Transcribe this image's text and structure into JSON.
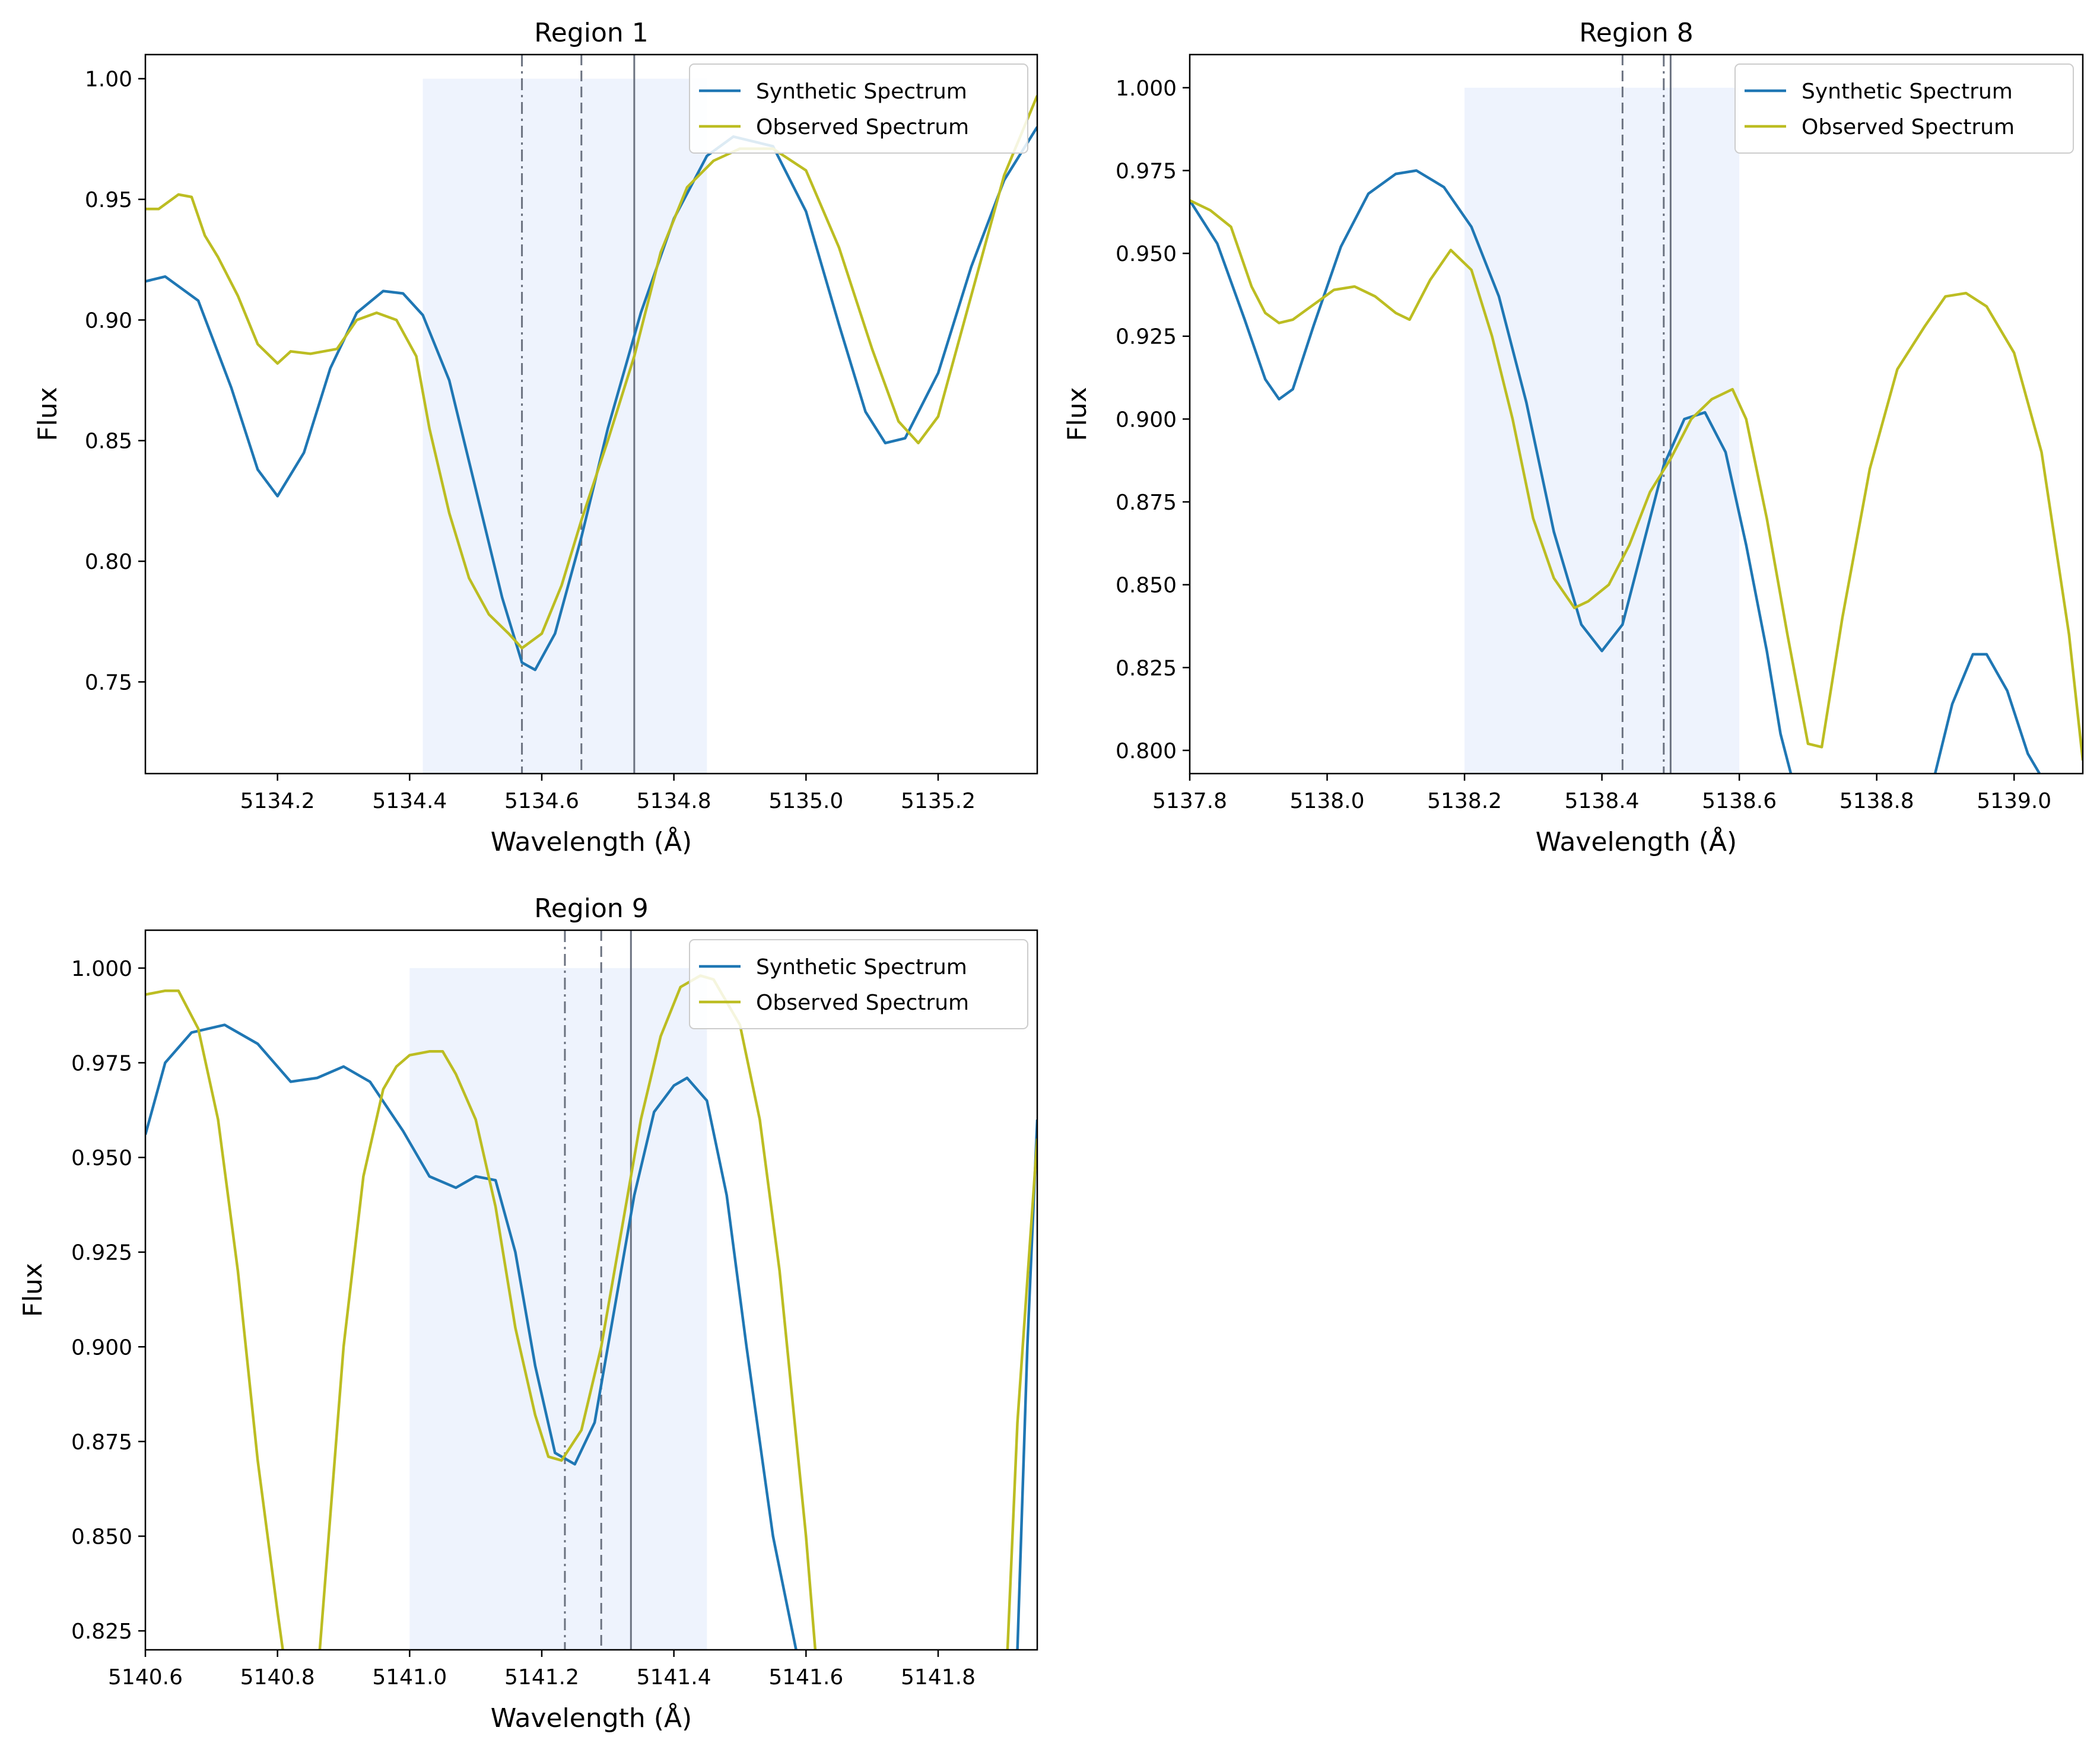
{
  "chart_data": [
    {
      "type": "line",
      "title": "Region 1",
      "xlabel": "Wavelength (Å)",
      "ylabel": "Flux",
      "xlim": [
        5134.0,
        5135.35
      ],
      "ylim": [
        0.712,
        1.01
      ],
      "xticks": [
        "5134.2",
        "5134.4",
        "5134.6",
        "5134.8",
        "5135.0",
        "5135.2"
      ],
      "yticks": [
        "0.75",
        "0.80",
        "0.85",
        "0.90",
        "0.95",
        "1.00"
      ],
      "xtick_values": [
        5134.2,
        5134.4,
        5134.6,
        5134.8,
        5135.0,
        5135.2
      ],
      "ytick_values": [
        0.75,
        0.8,
        0.85,
        0.9,
        0.95,
        1.0
      ],
      "shaded_region": {
        "x": [
          5134.42,
          5134.85
        ],
        "y": [
          0.712,
          1.0
        ]
      },
      "vlines": [
        {
          "x": 5134.57,
          "style": "dashdot"
        },
        {
          "x": 5134.66,
          "style": "dashed"
        },
        {
          "x": 5134.74,
          "style": "solid"
        }
      ],
      "legend": {
        "position": "upper right"
      },
      "series": [
        {
          "name": "Synthetic Spectrum",
          "color": "#1f77b4",
          "x": [
            5134.0,
            5134.03,
            5134.08,
            5134.13,
            5134.17,
            5134.2,
            5134.24,
            5134.28,
            5134.32,
            5134.36,
            5134.39,
            5134.42,
            5134.46,
            5134.5,
            5134.54,
            5134.57,
            5134.59,
            5134.62,
            5134.66,
            5134.7,
            5134.75,
            5134.8,
            5134.85,
            5134.89,
            5134.95,
            5135.0,
            5135.05,
            5135.09,
            5135.12,
            5135.15,
            5135.2,
            5135.25,
            5135.3,
            5135.35
          ],
          "y": [
            0.916,
            0.918,
            0.908,
            0.872,
            0.838,
            0.827,
            0.845,
            0.88,
            0.903,
            0.912,
            0.911,
            0.902,
            0.875,
            0.83,
            0.785,
            0.758,
            0.755,
            0.77,
            0.81,
            0.855,
            0.903,
            0.942,
            0.968,
            0.976,
            0.972,
            0.945,
            0.898,
            0.862,
            0.849,
            0.851,
            0.878,
            0.922,
            0.958,
            0.98
          ]
        },
        {
          "name": "Observed Spectrum",
          "color": "#bcbd22",
          "x": [
            5134.0,
            5134.02,
            5134.05,
            5134.07,
            5134.09,
            5134.11,
            5134.14,
            5134.17,
            5134.2,
            5134.22,
            5134.25,
            5134.29,
            5134.32,
            5134.35,
            5134.38,
            5134.41,
            5134.43,
            5134.46,
            5134.49,
            5134.52,
            5134.55,
            5134.57,
            5134.6,
            5134.63,
            5134.66,
            5134.7,
            5134.74,
            5134.78,
            5134.82,
            5134.86,
            5134.9,
            5134.95,
            5135.0,
            5135.05,
            5135.1,
            5135.14,
            5135.17,
            5135.2,
            5135.25,
            5135.3,
            5135.35
          ],
          "y": [
            0.946,
            0.946,
            0.952,
            0.951,
            0.935,
            0.926,
            0.91,
            0.89,
            0.882,
            0.887,
            0.886,
            0.888,
            0.9,
            0.903,
            0.9,
            0.885,
            0.855,
            0.82,
            0.793,
            0.778,
            0.77,
            0.764,
            0.77,
            0.79,
            0.817,
            0.85,
            0.885,
            0.928,
            0.955,
            0.966,
            0.971,
            0.971,
            0.962,
            0.93,
            0.888,
            0.858,
            0.849,
            0.86,
            0.91,
            0.96,
            0.993
          ]
        }
      ]
    },
    {
      "type": "line",
      "title": "Region 8",
      "xlabel": "Wavelength (Å)",
      "ylabel": "Flux",
      "xlim": [
        5137.8,
        5139.1
      ],
      "ylim": [
        0.793,
        1.01
      ],
      "xticks": [
        "5137.8",
        "5138.0",
        "5138.2",
        "5138.4",
        "5138.6",
        "5138.8",
        "5139.0"
      ],
      "yticks": [
        "0.800",
        "0.825",
        "0.850",
        "0.875",
        "0.900",
        "0.925",
        "0.950",
        "0.975",
        "1.000"
      ],
      "xtick_values": [
        5137.8,
        5138.0,
        5138.2,
        5138.4,
        5138.6,
        5138.8,
        5139.0
      ],
      "ytick_values": [
        0.8,
        0.825,
        0.85,
        0.875,
        0.9,
        0.925,
        0.95,
        0.975,
        1.0
      ],
      "shaded_region": {
        "x": [
          5138.2,
          5138.6
        ],
        "y": [
          0.793,
          1.0
        ]
      },
      "vlines": [
        {
          "x": 5138.43,
          "style": "dashed"
        },
        {
          "x": 5138.49,
          "style": "dashdot"
        },
        {
          "x": 5138.5,
          "style": "solid"
        }
      ],
      "legend": {
        "position": "upper right"
      },
      "series": [
        {
          "name": "Synthetic Spectrum",
          "color": "#1f77b4",
          "x": [
            5137.8,
            5137.84,
            5137.88,
            5137.91,
            5137.93,
            5137.95,
            5137.98,
            5138.02,
            5138.06,
            5138.1,
            5138.13,
            5138.17,
            5138.21,
            5138.25,
            5138.29,
            5138.33,
            5138.37,
            5138.4,
            5138.43,
            5138.46,
            5138.49,
            5138.52,
            5138.55,
            5138.58,
            5138.61,
            5138.64,
            5138.66,
            5138.675,
            null,
            5138.885,
            5138.91,
            5138.94,
            5138.96,
            5138.99,
            5139.02,
            5139.037
          ],
          "y": [
            0.966,
            0.953,
            0.93,
            0.912,
            0.906,
            0.909,
            0.928,
            0.952,
            0.968,
            0.974,
            0.975,
            0.97,
            0.958,
            0.937,
            0.905,
            0.866,
            0.838,
            0.83,
            0.838,
            0.862,
            0.886,
            0.9,
            0.902,
            0.89,
            0.862,
            0.83,
            0.805,
            0.793,
            null,
            0.793,
            0.814,
            0.829,
            0.829,
            0.818,
            0.799,
            0.793
          ]
        },
        {
          "name": "Observed Spectrum",
          "color": "#bcbd22",
          "x": [
            5137.8,
            5137.83,
            5137.86,
            5137.89,
            5137.91,
            5137.93,
            5137.95,
            5137.97,
            5137.99,
            5138.01,
            5138.04,
            5138.07,
            5138.1,
            5138.12,
            5138.15,
            5138.18,
            5138.21,
            5138.24,
            5138.27,
            5138.3,
            5138.33,
            5138.36,
            5138.38,
            5138.41,
            5138.44,
            5138.47,
            5138.5,
            5138.53,
            5138.56,
            5138.59,
            5138.61,
            5138.64,
            5138.67,
            5138.7,
            5138.72,
            5138.75,
            5138.79,
            5138.83,
            5138.87,
            5138.9,
            5138.93,
            5138.96,
            5139.0,
            5139.04,
            5139.08,
            5139.1
          ],
          "y": [
            0.966,
            0.963,
            0.958,
            0.94,
            0.932,
            0.929,
            0.93,
            0.933,
            0.936,
            0.939,
            0.94,
            0.937,
            0.932,
            0.93,
            0.942,
            0.951,
            0.945,
            0.925,
            0.9,
            0.87,
            0.852,
            0.843,
            0.845,
            0.85,
            0.862,
            0.878,
            0.888,
            0.9,
            0.906,
            0.909,
            0.9,
            0.87,
            0.835,
            0.802,
            0.801,
            0.84,
            0.885,
            0.915,
            0.928,
            0.937,
            0.938,
            0.934,
            0.92,
            0.89,
            0.835,
            0.797
          ]
        }
      ]
    },
    {
      "type": "line",
      "title": "Region 9",
      "xlabel": "Wavelength (Å)",
      "ylabel": "Flux",
      "xlim": [
        5140.6,
        5141.95
      ],
      "ylim": [
        0.82,
        1.01
      ],
      "xticks": [
        "5140.6",
        "5140.8",
        "5141.0",
        "5141.2",
        "5141.4",
        "5141.6",
        "5141.8"
      ],
      "yticks": [
        "0.825",
        "0.850",
        "0.875",
        "0.900",
        "0.925",
        "0.950",
        "0.975",
        "1.000"
      ],
      "xtick_values": [
        5140.6,
        5140.8,
        5141.0,
        5141.2,
        5141.4,
        5141.6,
        5141.8
      ],
      "ytick_values": [
        0.825,
        0.85,
        0.875,
        0.9,
        0.925,
        0.95,
        0.975,
        1.0
      ],
      "shaded_region": {
        "x": [
          5141.0,
          5141.45
        ],
        "y": [
          0.82,
          1.0
        ]
      },
      "vlines": [
        {
          "x": 5141.235,
          "style": "dashdot"
        },
        {
          "x": 5141.29,
          "style": "dashed"
        },
        {
          "x": 5141.335,
          "style": "solid"
        }
      ],
      "legend": {
        "position": "upper right"
      },
      "series": [
        {
          "name": "Synthetic Spectrum",
          "color": "#1f77b4",
          "x": [
            5140.6,
            5140.63,
            5140.67,
            5140.72,
            5140.77,
            5140.82,
            5140.86,
            5140.9,
            5140.94,
            5140.99,
            5141.03,
            5141.07,
            5141.1,
            5141.13,
            5141.16,
            5141.19,
            5141.22,
            5141.25,
            5141.28,
            5141.31,
            5141.34,
            5141.37,
            5141.4,
            5141.42,
            5141.45,
            5141.48,
            5141.51,
            5141.55,
            5141.585,
            null,
            5141.92,
            5141.935,
            5141.95
          ],
          "y": [
            0.956,
            0.975,
            0.983,
            0.985,
            0.98,
            0.97,
            0.971,
            0.974,
            0.97,
            0.957,
            0.945,
            0.942,
            0.945,
            0.944,
            0.925,
            0.895,
            0.872,
            0.869,
            0.88,
            0.91,
            0.94,
            0.962,
            0.969,
            0.971,
            0.965,
            0.94,
            0.9,
            0.85,
            0.82,
            null,
            0.82,
            0.9,
            0.96
          ]
        },
        {
          "name": "Observed Spectrum",
          "color": "#bcbd22",
          "x": [
            5140.6,
            5140.63,
            5140.65,
            5140.68,
            5140.71,
            5140.74,
            5140.77,
            5140.8,
            5140.808,
            null,
            5140.864,
            5140.9,
            5140.93,
            5140.96,
            5140.98,
            5141.0,
            5141.03,
            5141.05,
            5141.07,
            5141.1,
            5141.13,
            5141.16,
            5141.19,
            5141.21,
            5141.23,
            5141.26,
            5141.29,
            5141.32,
            5141.35,
            5141.38,
            5141.41,
            5141.44,
            5141.46,
            5141.5,
            5141.53,
            5141.56,
            5141.6,
            5141.614,
            null,
            5141.905,
            5141.92,
            5141.95
          ],
          "y": [
            0.993,
            0.994,
            0.994,
            0.984,
            0.96,
            0.92,
            0.87,
            0.83,
            0.82,
            null,
            0.82,
            0.9,
            0.945,
            0.968,
            0.974,
            0.977,
            0.978,
            0.978,
            0.972,
            0.96,
            0.937,
            0.905,
            0.882,
            0.871,
            0.87,
            0.878,
            0.9,
            0.93,
            0.96,
            0.982,
            0.995,
            0.998,
            0.997,
            0.985,
            0.96,
            0.92,
            0.85,
            0.82,
            null,
            0.82,
            0.88,
            0.955
          ]
        }
      ]
    }
  ]
}
